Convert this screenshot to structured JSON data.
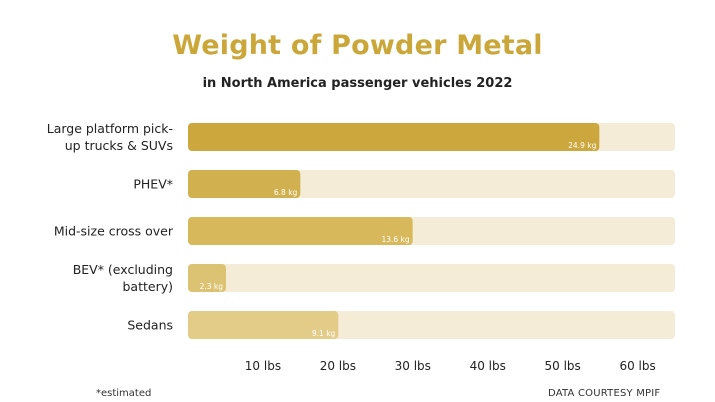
{
  "chart_data": {
    "type": "bar",
    "orientation": "horizontal",
    "title": "Weight of Powder Metal",
    "subtitle": "in North America passenger vehicles 2022",
    "categories": [
      "Large platform pick-up trucks & SUVs",
      "PHEV*",
      "Mid-size cross over",
      "BEV* (excluding battery)",
      "Sedans"
    ],
    "category_lines": [
      [
        "Large platform pick-",
        "up trucks & SUVs"
      ],
      [
        "PHEV*"
      ],
      [
        "Mid-size cross over"
      ],
      [
        "BEV* (excluding",
        "battery)"
      ],
      [
        "Sedans"
      ]
    ],
    "values": [
      24.9,
      6.8,
      13.6,
      2.3,
      9.1
    ],
    "value_labels": [
      "24.9 kg",
      "6.8 kg",
      "13.6 kg",
      "2.3 kg",
      "9.1 kg"
    ],
    "bar_colors": [
      "#cca73e",
      "#d1b04f",
      "#d7b95c",
      "#dcc273",
      "#e2cc88"
    ],
    "track_color": "#f5ecd7",
    "xlim": [
      0,
      29.48
    ],
    "x_tick_labels": [
      "10 lbs",
      "20 lbs",
      "30 lbs",
      "40 lbs",
      "50 lbs",
      "60 lbs"
    ],
    "x_tick_values": [
      4.536,
      9.072,
      13.608,
      18.144,
      22.68,
      27.216
    ],
    "grid": false,
    "legend": "none"
  },
  "footer": {
    "note": "*estimated",
    "credit": "DATA COURTESY MPIF"
  }
}
